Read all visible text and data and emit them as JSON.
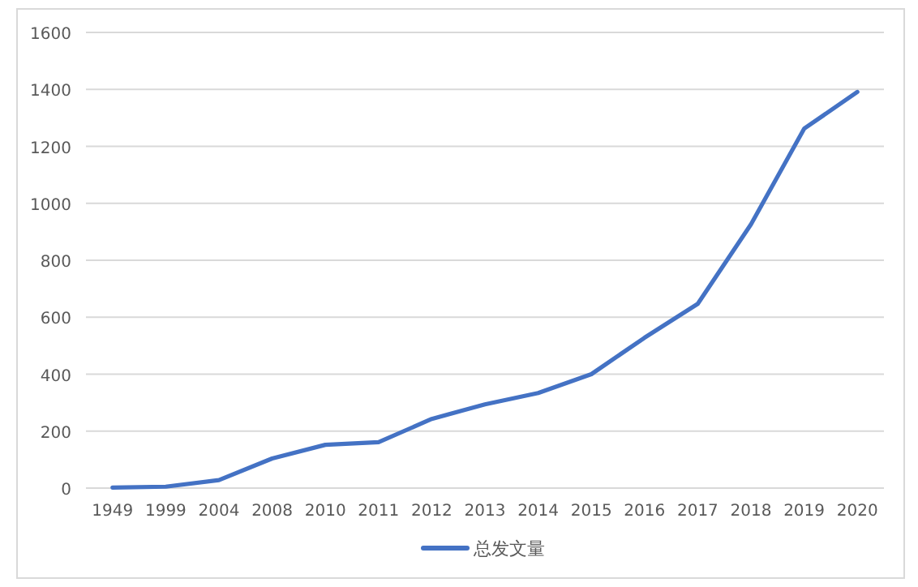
{
  "chart_data": {
    "type": "line",
    "categories": [
      "1949",
      "1999",
      "2004",
      "2008",
      "2010",
      "2011",
      "2012",
      "2013",
      "2014",
      "2015",
      "2016",
      "2017",
      "2018",
      "2019",
      "2020"
    ],
    "series": [
      {
        "name": "总发文量",
        "color": "#4472c4",
        "values": [
          2,
          5,
          28,
          104,
          152,
          161,
          243,
          294,
          334,
          400,
          528,
          647,
          926,
          1262,
          1391
        ]
      }
    ],
    "ylim": [
      0,
      1600
    ],
    "yticks": [
      0,
      200,
      400,
      600,
      800,
      1000,
      1200,
      1400,
      1600
    ],
    "grid": "y",
    "legend": "bottom",
    "marker": "none",
    "line_style": "solid"
  }
}
